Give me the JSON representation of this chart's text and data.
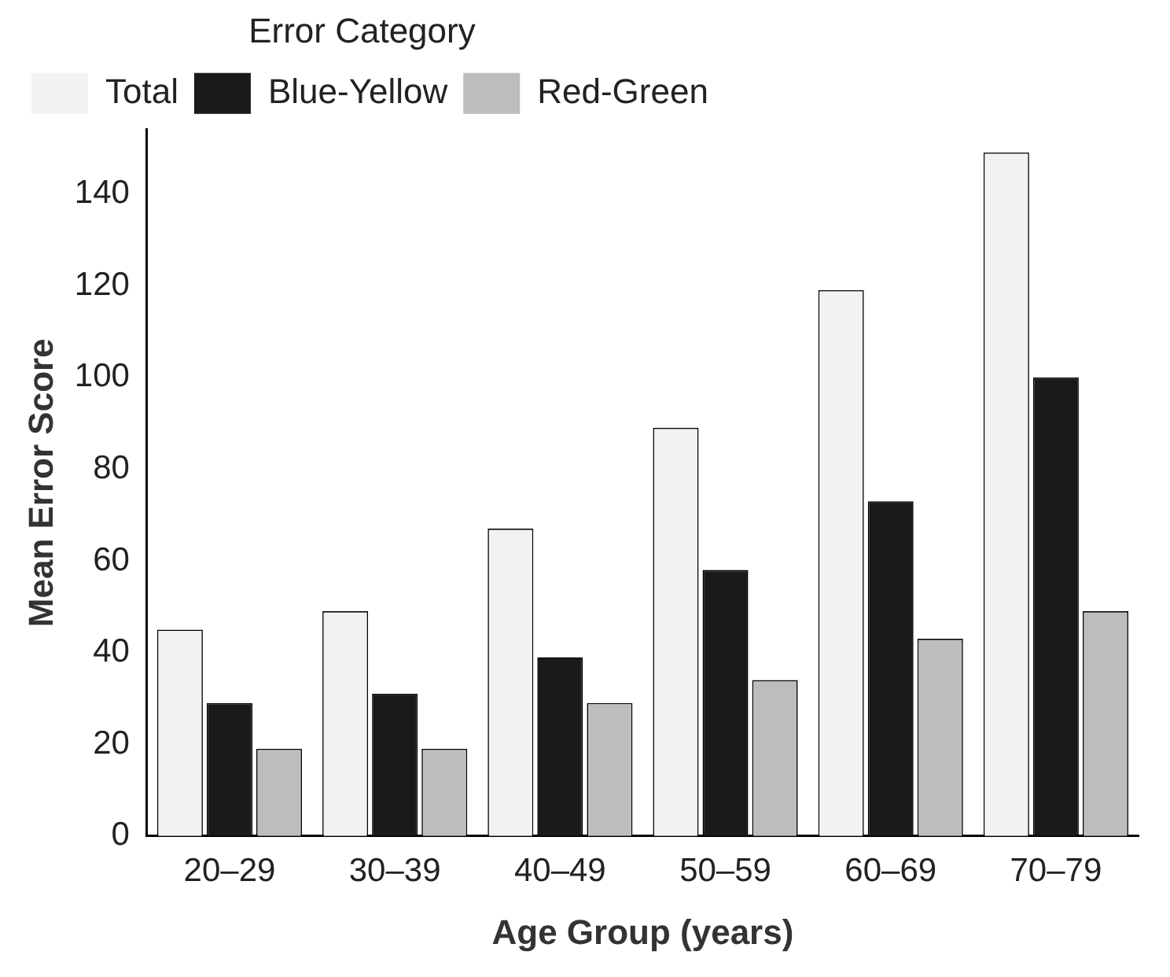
{
  "chart_data": {
    "type": "bar",
    "xlabel": "Age Group (years)",
    "ylabel": "Mean Error Score",
    "legend_title": "Error Category",
    "categories": [
      "20–29",
      "30–39",
      "40–49",
      "50–59",
      "60–69",
      "70–79"
    ],
    "series": [
      {
        "name": "Total",
        "color": "#f2f2f2",
        "values": [
          45,
          49,
          67,
          89,
          119,
          149
        ]
      },
      {
        "name": "Blue-Yellow",
        "color": "#1a1a1a",
        "values": [
          29,
          31,
          39,
          58,
          73,
          100
        ]
      },
      {
        "name": "Red-Green",
        "color": "#bdbdbd",
        "values": [
          19,
          19,
          29,
          34,
          43,
          49
        ]
      }
    ],
    "ylim": [
      0,
      154
    ],
    "yticks": [
      0,
      20,
      40,
      60,
      80,
      100,
      120,
      140
    ],
    "grid": false,
    "legend": "top left"
  }
}
